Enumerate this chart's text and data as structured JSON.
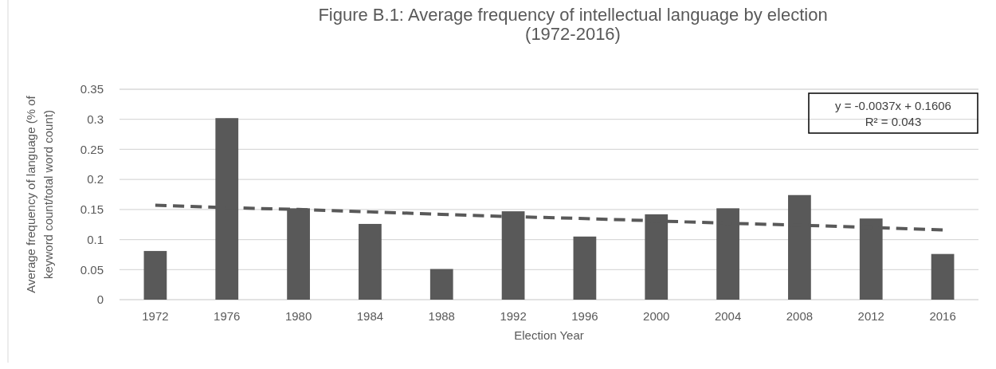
{
  "chart_data": {
    "type": "bar",
    "title": "Figure B.1: Average frequency of intellectual language by election (1972-2016)",
    "xlabel": "Election Year",
    "ylabel": "Average frequency of language (% of keyword count/total word count)",
    "categories": [
      "1972",
      "1976",
      "1980",
      "1984",
      "1988",
      "1992",
      "1996",
      "2000",
      "2004",
      "2008",
      "2012",
      "2016"
    ],
    "series": [
      {
        "color": "#595959",
        "values": [
          0.081,
          0.302,
          0.152,
          0.126,
          0.051,
          0.147,
          0.105,
          0.142,
          0.152,
          0.174,
          0.135,
          0.076
        ]
      },
      {
        "type": "line",
        "color": "#595959",
        "line_style": "dashed",
        "marker": "none",
        "values": [
          0.157,
          0.153,
          0.15,
          0.146,
          0.142,
          0.138,
          0.135,
          0.131,
          0.127,
          0.124,
          0.12,
          0.116
        ]
      }
    ],
    "ylim": [
      0,
      0.35
    ],
    "yticks": [
      0,
      0.05,
      0.1,
      0.15,
      0.2,
      0.25,
      0.3,
      0.35
    ],
    "grid": "y",
    "annotations": [
      "y = -0.0037x + 0.1606\nR² = 0.043"
    ]
  }
}
